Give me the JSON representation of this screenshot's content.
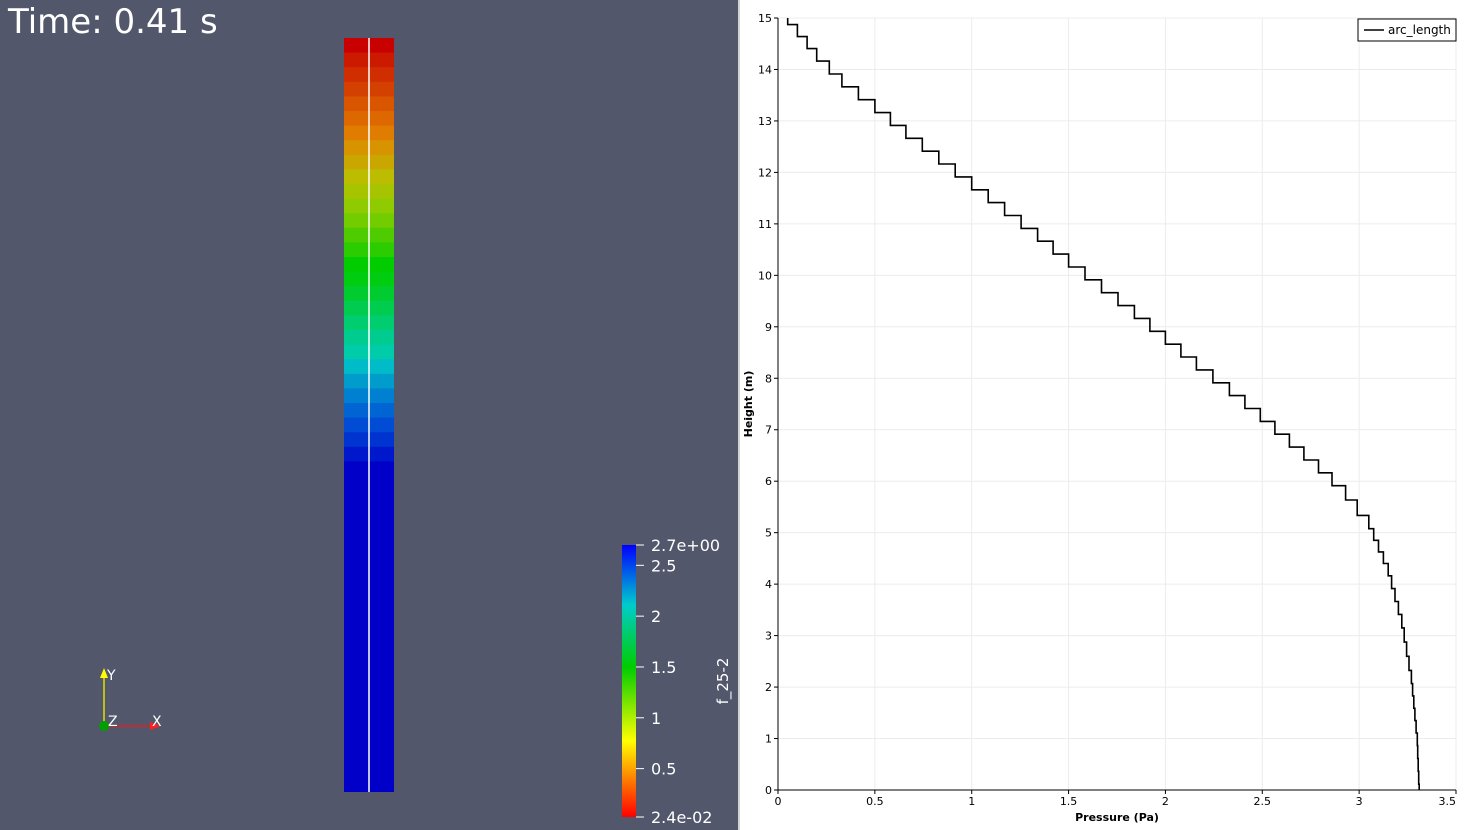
{
  "viewport_3d": {
    "time_label": "Time: 0.41 s",
    "background_color": "#52576b",
    "scalar_bar": {
      "title": "f_25-2",
      "max_label": "2.7e+00",
      "min_label": "2.4e-02",
      "ticks": [
        {
          "value": 2.5,
          "label": "2.5"
        },
        {
          "value": 2,
          "label": "2"
        },
        {
          "value": 1.5,
          "label": "1.5"
        },
        {
          "value": 1,
          "label": "1"
        },
        {
          "value": 0.5,
          "label": "0.5"
        }
      ],
      "range": [
        0.024,
        2.7
      ],
      "colormap": [
        "#ff0000",
        "#ffff00",
        "#00cc00",
        "#00cccc",
        "#0000ff"
      ]
    },
    "orientation_axes": {
      "x_label": "X",
      "y_label": "Y",
      "z_label": "Z",
      "x_color": "#ff2020",
      "y_color": "#ffff00",
      "z_color": "#00a000"
    },
    "column_band_colors": [
      "#c80000",
      "#cc1a00",
      "#d02e00",
      "#d44000",
      "#d95500",
      "#dd6800",
      "#e07c00",
      "#d89300",
      "#c9a700",
      "#bcbc00",
      "#a6c400",
      "#8fcb00",
      "#72cc00",
      "#4fcc00",
      "#2bcc00",
      "#00cc00",
      "#00cc10",
      "#00cc30",
      "#00cc50",
      "#00cc70",
      "#00cc90",
      "#00ccaa",
      "#00bcc8",
      "#009ccc",
      "#0080d0",
      "#0064d2",
      "#004cd4",
      "#0034d0",
      "#0018cc",
      "#0000c8"
    ]
  },
  "chart_data": {
    "type": "line",
    "xlabel": "Pressure (Pa)",
    "ylabel": "Height (m)",
    "xlim": [
      0,
      3.5
    ],
    "ylim": [
      0,
      15
    ],
    "xticks": [
      0,
      0.5,
      1,
      1.5,
      2,
      2.5,
      3,
      3.5
    ],
    "xtick_labels": [
      "0",
      "0.5",
      "1",
      "1.5",
      "2",
      "2.5",
      "3",
      "3.5"
    ],
    "yticks": [
      0,
      1,
      2,
      3,
      4,
      5,
      6,
      7,
      8,
      9,
      10,
      11,
      12,
      13,
      14,
      15
    ],
    "ytick_labels": [
      "0",
      "1",
      "2",
      "3",
      "4",
      "5",
      "6",
      "7",
      "8",
      "9",
      "10",
      "11",
      "12",
      "13",
      "14",
      "15"
    ],
    "grid": true,
    "legend_position": "top-right",
    "series": [
      {
        "name": "arc_length",
        "color": "#000000",
        "x": [
          0.05,
          0.2,
          0.33,
          0.5,
          0.66,
          0.83,
          1.0,
          1.17,
          1.34,
          1.5,
          1.67,
          1.84,
          2.0,
          2.16,
          2.33,
          2.49,
          2.64,
          2.79,
          2.93,
          3.05,
          3.15,
          3.22,
          3.27,
          3.3,
          3.31
        ],
        "y": [
          15.0,
          14.3,
          13.8,
          13.3,
          12.8,
          12.3,
          11.8,
          11.3,
          10.8,
          10.3,
          9.8,
          9.3,
          8.8,
          8.3,
          7.8,
          7.3,
          6.8,
          6.3,
          5.8,
          5.2,
          4.3,
          3.3,
          2.2,
          1.0,
          0.0
        ]
      }
    ]
  }
}
